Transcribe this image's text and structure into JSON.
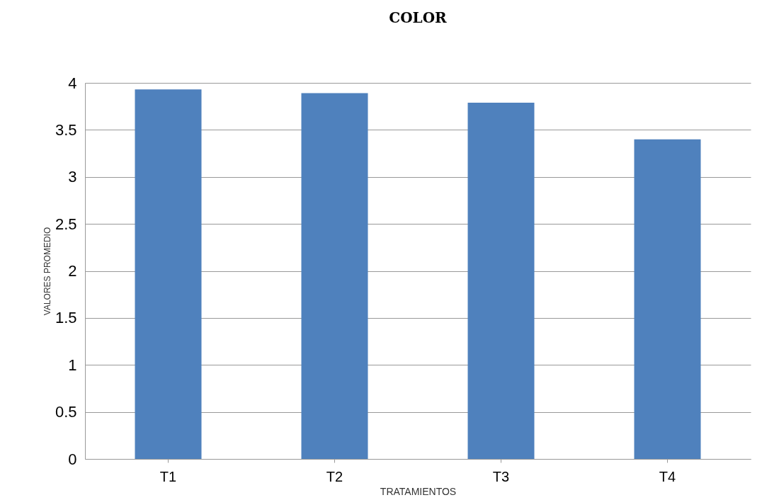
{
  "chart_data": {
    "type": "bar",
    "title": "COLOR",
    "xlabel": "TRATAMIENTOS",
    "ylabel": "VALORES PROMEDIO",
    "categories": [
      "T1",
      "T2",
      "T3",
      "T4"
    ],
    "values": [
      3.93,
      3.89,
      3.79,
      3.4
    ],
    "color": "#4f81bd",
    "ylim": [
      0,
      4
    ],
    "yticks": [
      0,
      0.5,
      1,
      1.5,
      2,
      2.5,
      3,
      3.5,
      4
    ],
    "grid": "y"
  }
}
